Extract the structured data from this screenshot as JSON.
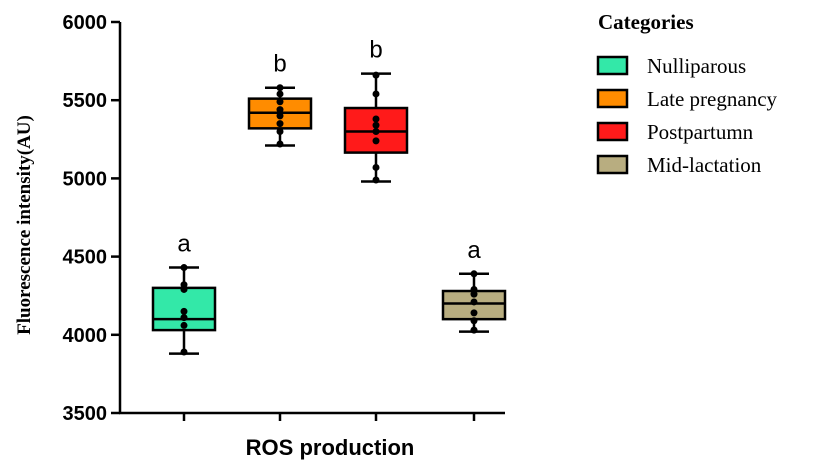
{
  "chart_data": {
    "type": "boxplot",
    "xlabel": "ROS production",
    "ylabel": "Fluorescence intensity(AU)",
    "ylim": [
      3500,
      6000
    ],
    "yticks": [
      3500,
      4000,
      4500,
      5000,
      5500,
      6000
    ],
    "grid": false,
    "legend": {
      "title": "Categories",
      "position": "right"
    },
    "series": [
      {
        "name": "Nulliparous",
        "color": "#33e8a8",
        "letter": "a",
        "min": 3880,
        "q1": 4030,
        "median": 4100,
        "q3": 4300,
        "max": 4430,
        "points": [
          3890,
          4060,
          4110,
          4150,
          4290,
          4320,
          4430
        ]
      },
      {
        "name": "Late pregnancy",
        "color": "#ff8c00",
        "letter": "b",
        "min": 5210,
        "q1": 5320,
        "median": 5420,
        "q3": 5510,
        "max": 5580,
        "points": [
          5220,
          5300,
          5350,
          5400,
          5440,
          5490,
          5540,
          5580
        ]
      },
      {
        "name": "Postpartumn",
        "color": "#ff1a1a",
        "letter": "b",
        "min": 4980,
        "q1": 5165,
        "median": 5300,
        "q3": 5450,
        "max": 5670,
        "points": [
          4990,
          5070,
          5240,
          5300,
          5340,
          5380,
          5540,
          5660
        ]
      },
      {
        "name": "Mid-lactation",
        "color": "#b8ad80",
        "letter": "a",
        "min": 4020,
        "q1": 4100,
        "median": 4200,
        "q3": 4280,
        "max": 4390,
        "points": [
          4030,
          4090,
          4140,
          4210,
          4260,
          4290,
          4390
        ]
      }
    ]
  }
}
